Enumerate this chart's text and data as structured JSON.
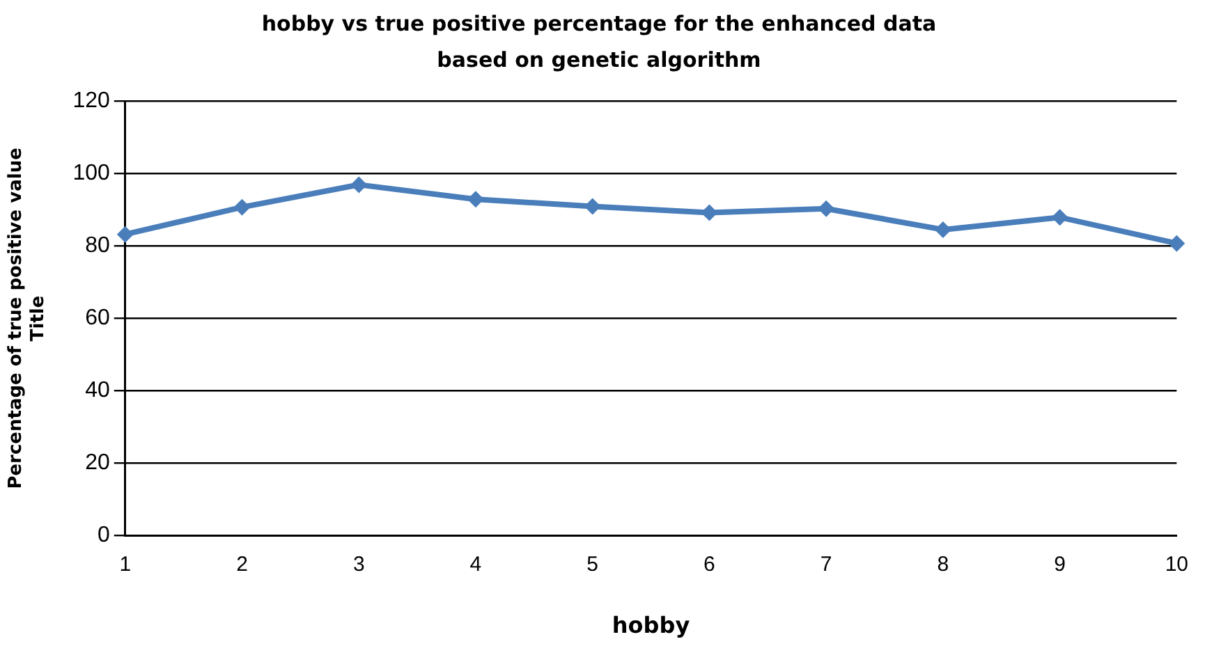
{
  "chart_data": {
    "type": "line",
    "title": "hobby vs true positive percentage for the enhanced data based on genetic algorithm",
    "xlabel": "hobby",
    "ylabel": "Percentage of true positive value\nTitle",
    "categories": [
      "1",
      "2",
      "3",
      "4",
      "5",
      "6",
      "7",
      "8",
      "9",
      "10"
    ],
    "series": [
      {
        "color": "#4a7ebb",
        "values": [
          83.2,
          90.7,
          96.9,
          92.9,
          90.9,
          89.2,
          90.3,
          84.5,
          87.9,
          80.7
        ]
      }
    ],
    "ylim": [
      0,
      120
    ],
    "yticks": [
      0,
      20,
      40,
      60,
      80,
      100,
      120
    ],
    "grid": "y",
    "legend": false,
    "marker": "diamond",
    "line_style": "solid"
  }
}
